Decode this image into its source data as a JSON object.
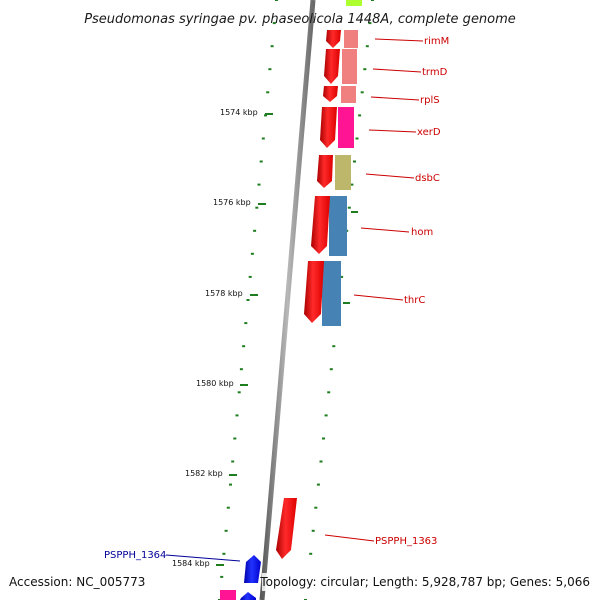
{
  "title": "Pseudomonas syringae pv. phaseolicola 1448A, complete genome",
  "footer": {
    "accession": "Accession: NC_005773",
    "summary": "Topology: circular; Length: 5,928,787 bp; Genes: 5,066"
  },
  "ticks": [
    "1574 kbp",
    "1576 kbp",
    "1578 kbp",
    "1580 kbp",
    "1582 kbp",
    "1584 kbp"
  ],
  "genes": [
    {
      "name": "rimM",
      "color": "#cc0000"
    },
    {
      "name": "trmD",
      "color": "#cc0000"
    },
    {
      "name": "rplS",
      "color": "#cc0000"
    },
    {
      "name": "xerD",
      "color": "#cc0000"
    },
    {
      "name": "dsbC",
      "color": "#cc0000"
    },
    {
      "name": "hom",
      "color": "#cc0000"
    },
    {
      "name": "thrC",
      "color": "#cc0000"
    },
    {
      "name": "PSPPH_1363",
      "color": "#cc0000"
    },
    {
      "name": "PSPPH_1364",
      "color": "#000099"
    }
  ],
  "colors": {
    "cds_red": "#ff0000",
    "cds_blue": "#0000ee",
    "backbone": "#808080",
    "tick_green": "#1e7d1e",
    "salmon": "#f08080",
    "pink": "#ff1493",
    "khaki": "#bdb76b",
    "steelblue": "#4682b4",
    "lime": "#adff2f"
  }
}
